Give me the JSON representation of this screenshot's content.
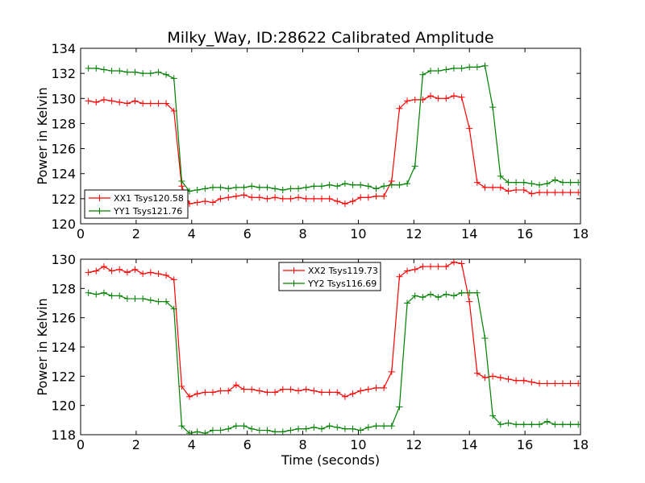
{
  "chart_data": {
    "title": "Milky_Way, ID:28622 Calibrated Amplitude",
    "xlabel": "Time (seconds)",
    "colors": {
      "series1": "#ff0000",
      "series2": "#008000"
    },
    "panels": [
      {
        "type": "line",
        "ylabel": "Power in Kelvin",
        "xlim": [
          0,
          18
        ],
        "ylim": [
          120,
          134
        ],
        "xticks": [
          0,
          2,
          4,
          6,
          8,
          10,
          12,
          14,
          16,
          18
        ],
        "yticks": [
          120,
          122,
          124,
          126,
          128,
          130,
          132,
          134
        ],
        "legend_position": "lower-left",
        "x": [
          0.28,
          0.56,
          0.84,
          1.12,
          1.4,
          1.68,
          1.96,
          2.24,
          2.52,
          2.8,
          3.08,
          3.36,
          3.64,
          3.92,
          4.2,
          4.48,
          4.76,
          5.04,
          5.32,
          5.6,
          5.88,
          6.16,
          6.44,
          6.72,
          7.0,
          7.28,
          7.56,
          7.84,
          8.12,
          8.4,
          8.68,
          8.96,
          9.24,
          9.52,
          9.8,
          10.08,
          10.36,
          10.64,
          10.92,
          11.2,
          11.48,
          11.76,
          12.04,
          12.32,
          12.6,
          12.88,
          13.16,
          13.44,
          13.72,
          14.0,
          14.28,
          14.56,
          14.84,
          15.12,
          15.4,
          15.68,
          15.96,
          16.24,
          16.52,
          16.8,
          17.08,
          17.36,
          17.64,
          17.92
        ],
        "series": [
          {
            "name": "XX1 Tsys120.58",
            "color": "#ff0000",
            "values": [
              129.8,
              129.7,
              129.9,
              129.8,
              129.7,
              129.6,
              129.8,
              129.6,
              129.6,
              129.6,
              129.6,
              129.0,
              123.0,
              121.6,
              121.7,
              121.8,
              121.7,
              122.0,
              122.1,
              122.2,
              122.3,
              122.1,
              122.1,
              122.0,
              122.1,
              122.0,
              122.0,
              122.1,
              122.0,
              122.0,
              122.0,
              122.0,
              121.8,
              121.6,
              121.8,
              122.1,
              122.1,
              122.2,
              122.2,
              123.4,
              129.2,
              129.8,
              129.9,
              129.9,
              130.2,
              130.0,
              130.0,
              130.2,
              130.1,
              127.6,
              123.3,
              122.9,
              122.9,
              122.9,
              122.6,
              122.7,
              122.7,
              122.4,
              122.5,
              122.5,
              122.5,
              122.5,
              122.5,
              122.5
            ]
          },
          {
            "name": "YY1 Tsys121.76",
            "color": "#008000",
            "values": [
              132.4,
              132.4,
              132.3,
              132.2,
              132.2,
              132.1,
              132.1,
              132.0,
              132.0,
              132.1,
              131.9,
              131.6,
              123.4,
              122.6,
              122.7,
              122.8,
              122.9,
              122.9,
              122.8,
              122.9,
              122.9,
              123.0,
              122.9,
              122.9,
              122.8,
              122.7,
              122.8,
              122.8,
              122.9,
              123.0,
              123.0,
              123.1,
              123.0,
              123.2,
              123.1,
              123.1,
              123.0,
              122.8,
              123.0,
              123.1,
              123.1,
              123.2,
              124.6,
              131.9,
              132.2,
              132.2,
              132.3,
              132.4,
              132.4,
              132.5,
              132.5,
              132.6,
              129.3,
              123.8,
              123.3,
              123.3,
              123.3,
              123.2,
              123.1,
              123.2,
              123.5,
              123.3,
              123.3,
              123.3
            ]
          }
        ]
      },
      {
        "type": "line",
        "ylabel": "Power in Kelvin",
        "xlim": [
          0,
          18
        ],
        "ylim": [
          118,
          130
        ],
        "xticks": [
          0,
          2,
          4,
          6,
          8,
          10,
          12,
          14,
          16,
          18
        ],
        "yticks": [
          118,
          120,
          122,
          124,
          126,
          128,
          130
        ],
        "legend_position": "top-center",
        "x": [
          0.28,
          0.56,
          0.84,
          1.12,
          1.4,
          1.68,
          1.96,
          2.24,
          2.52,
          2.8,
          3.08,
          3.36,
          3.64,
          3.92,
          4.2,
          4.48,
          4.76,
          5.04,
          5.32,
          5.6,
          5.88,
          6.16,
          6.44,
          6.72,
          7.0,
          7.28,
          7.56,
          7.84,
          8.12,
          8.4,
          8.68,
          8.96,
          9.24,
          9.52,
          9.8,
          10.08,
          10.36,
          10.64,
          10.92,
          11.2,
          11.48,
          11.76,
          12.04,
          12.32,
          12.6,
          12.88,
          13.16,
          13.44,
          13.72,
          14.0,
          14.28,
          14.56,
          14.84,
          15.12,
          15.4,
          15.68,
          15.96,
          16.24,
          16.52,
          16.8,
          17.08,
          17.36,
          17.64,
          17.92
        ],
        "series": [
          {
            "name": "XX2 Tsys119.73",
            "color": "#ff0000",
            "values": [
              129.1,
              129.2,
              129.5,
              129.2,
              129.3,
              129.1,
              129.3,
              129.0,
              129.1,
              129.0,
              128.9,
              128.6,
              121.3,
              120.6,
              120.8,
              120.9,
              120.9,
              121.0,
              121.0,
              121.4,
              121.1,
              121.1,
              121.0,
              120.9,
              120.9,
              121.1,
              121.1,
              121.0,
              121.1,
              121.0,
              120.9,
              120.9,
              120.9,
              120.6,
              120.8,
              121.0,
              121.1,
              121.2,
              121.2,
              122.3,
              128.8,
              129.2,
              129.3,
              129.5,
              129.5,
              129.5,
              129.5,
              129.8,
              129.7,
              127.1,
              122.2,
              121.9,
              122.0,
              121.9,
              121.8,
              121.7,
              121.7,
              121.6,
              121.5,
              121.5,
              121.5,
              121.5,
              121.5,
              121.5
            ]
          },
          {
            "name": "YY2 Tsys116.69",
            "color": "#008000",
            "values": [
              127.7,
              127.6,
              127.7,
              127.5,
              127.5,
              127.3,
              127.3,
              127.3,
              127.2,
              127.1,
              127.1,
              126.6,
              118.6,
              118.1,
              118.2,
              118.1,
              118.3,
              118.3,
              118.4,
              118.6,
              118.6,
              118.4,
              118.3,
              118.3,
              118.2,
              118.2,
              118.3,
              118.4,
              118.4,
              118.5,
              118.4,
              118.6,
              118.5,
              118.4,
              118.4,
              118.3,
              118.5,
              118.6,
              118.6,
              118.6,
              119.9,
              127.0,
              127.5,
              127.4,
              127.6,
              127.4,
              127.6,
              127.5,
              127.7,
              127.7,
              127.7,
              124.6,
              119.3,
              118.7,
              118.8,
              118.7,
              118.7,
              118.7,
              118.7,
              118.9,
              118.7,
              118.7,
              118.7,
              118.7
            ]
          }
        ]
      }
    ]
  }
}
